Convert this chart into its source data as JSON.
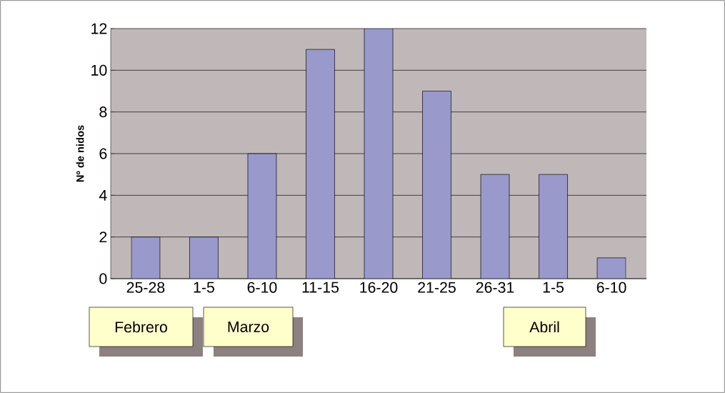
{
  "chart_data": {
    "type": "bar",
    "ylabel": "Nº de nidos",
    "categories": [
      "25-28",
      "1-5",
      "6-10",
      "11-15",
      "16-20",
      "21-25",
      "26-31",
      "1-5",
      "6-10"
    ],
    "values": [
      2,
      2,
      6,
      11,
      12,
      9,
      5,
      5,
      1
    ],
    "color": "#9999cc",
    "ylim": [
      0,
      12
    ],
    "yticks": [
      0,
      2,
      4,
      6,
      8,
      10,
      12
    ],
    "grid": "y",
    "annotations": [
      "Febrero",
      "Marzo",
      "Abril"
    ]
  }
}
